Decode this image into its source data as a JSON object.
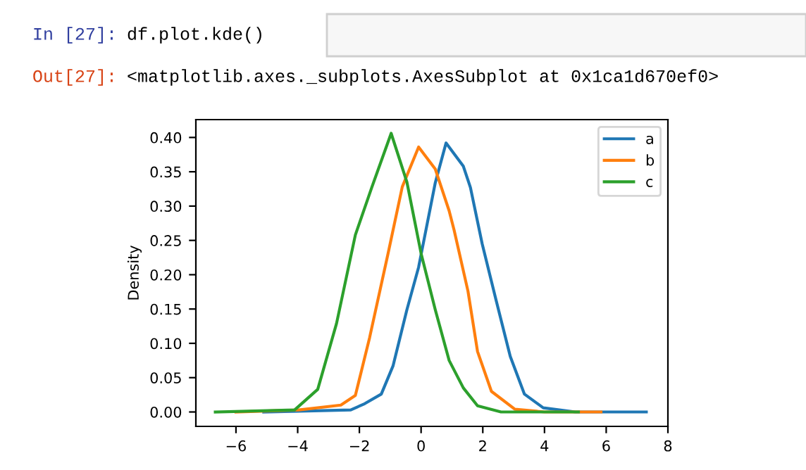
{
  "chart_data": {
    "type": "line",
    "ylabel": "Density",
    "annotations": [
      "In [27]:",
      "df.plot.kde()",
      "Out[27]:",
      "<matplotlib.axes._subplots.AxesSubplot at 0x1ca1d670ef0>"
    ],
    "xlim": [
      -7.3,
      8.0
    ],
    "ylim": [
      -0.021,
      0.426
    ],
    "xticks": [
      {
        "value": -6,
        "label": "−6"
      },
      {
        "value": -4,
        "label": "−4"
      },
      {
        "value": -2,
        "label": "−2"
      },
      0,
      2,
      4,
      6,
      8
    ],
    "yticks": [
      {
        "value": 0,
        "label": "0.00"
      },
      {
        "value": 0.05,
        "label": "0.05"
      },
      {
        "value": 0.1,
        "label": "0.10"
      },
      {
        "value": 0.15,
        "label": "0.15"
      },
      {
        "value": 0.2,
        "label": "0.20"
      },
      {
        "value": 0.25,
        "label": "0.25"
      },
      {
        "value": 0.3,
        "label": "0.30"
      },
      {
        "value": 0.35,
        "label": "0.35"
      },
      {
        "value": 0.4,
        "label": "0.40"
      }
    ],
    "legend": "top right",
    "grid": false,
    "series": [
      {
        "name": "a",
        "color": "#1f77b4",
        "x": [
          -5.1,
          -2.28,
          -1.83,
          -1.29,
          -0.91,
          -0.46,
          -0.08,
          0.46,
          0.81,
          1.37,
          1.6,
          1.98,
          2.43,
          2.89,
          3.35,
          3.96,
          5.0,
          7.3
        ],
        "values": [
          0.0,
          0.003,
          0.012,
          0.026,
          0.067,
          0.149,
          0.211,
          0.334,
          0.392,
          0.358,
          0.327,
          0.245,
          0.163,
          0.081,
          0.026,
          0.006,
          0.0,
          0.0
        ]
      },
      {
        "name": "b",
        "color": "#ff7f0e",
        "x": [
          -6.0,
          -3.96,
          -2.6,
          -2.13,
          -1.67,
          -1.07,
          -0.61,
          -0.08,
          0.46,
          0.91,
          1.07,
          1.52,
          1.83,
          2.28,
          3.04,
          4.0,
          5.83
        ],
        "values": [
          0.0,
          0.003,
          0.01,
          0.024,
          0.108,
          0.231,
          0.328,
          0.386,
          0.354,
          0.293,
          0.265,
          0.176,
          0.088,
          0.03,
          0.004,
          0.0,
          0.0
        ]
      },
      {
        "name": "c",
        "color": "#2ca02c",
        "x": [
          -6.67,
          -4.1,
          -3.35,
          -2.74,
          -2.13,
          -1.6,
          -0.97,
          -0.46,
          0.0,
          0.46,
          0.91,
          1.37,
          1.83,
          2.59,
          5.1
        ],
        "values": [
          0.0,
          0.003,
          0.033,
          0.129,
          0.258,
          0.327,
          0.406,
          0.335,
          0.231,
          0.149,
          0.075,
          0.035,
          0.009,
          0.0,
          0.0
        ]
      }
    ]
  }
}
